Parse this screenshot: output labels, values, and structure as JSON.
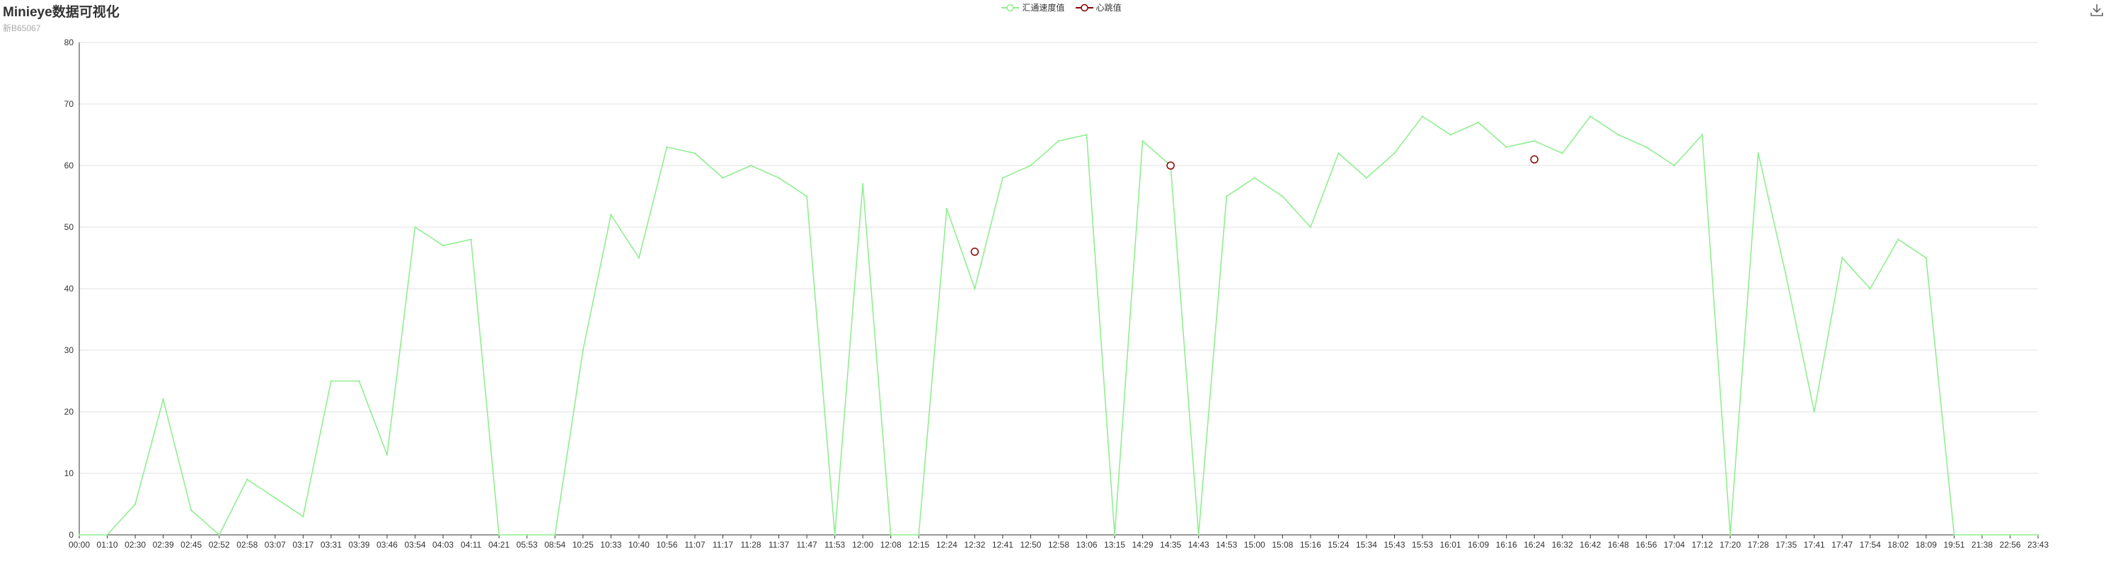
{
  "header": {
    "title": "Minieye数据可视化",
    "subtitle": "新B65067"
  },
  "toolbox": {
    "download_icon": "download-icon"
  },
  "colors": {
    "speed": "#90ee90",
    "heart": "#8b0000",
    "grid": "#e0e0e0",
    "axis": "#333333"
  },
  "chart_data": {
    "type": "line",
    "title": "Minieye数据可视化",
    "subtitle": "新B65067",
    "ylim": [
      0,
      80
    ],
    "y_ticks": [
      0,
      10,
      20,
      30,
      40,
      50,
      60,
      70,
      80
    ],
    "legend_position": "top-center",
    "grid": true,
    "categories": [
      "00:00",
      "01:10",
      "02:30",
      "02:39",
      "02:45",
      "02:52",
      "02:58",
      "03:07",
      "03:17",
      "03:31",
      "03:39",
      "03:46",
      "03:54",
      "04:03",
      "04:11",
      "04:21",
      "05:53",
      "08:54",
      "10:25",
      "10:33",
      "10:40",
      "10:56",
      "11:07",
      "11:17",
      "11:28",
      "11:37",
      "11:47",
      "11:53",
      "12:00",
      "12:08",
      "12:15",
      "12:24",
      "12:32",
      "12:41",
      "12:50",
      "12:58",
      "13:06",
      "13:15",
      "14:29",
      "14:35",
      "14:43",
      "14:53",
      "15:00",
      "15:08",
      "15:16",
      "15:24",
      "15:34",
      "15:43",
      "15:53",
      "16:01",
      "16:09",
      "16:16",
      "16:24",
      "16:32",
      "16:42",
      "16:48",
      "16:56",
      "17:04",
      "17:12",
      "17:20",
      "17:28",
      "17:35",
      "17:41",
      "17:47",
      "17:54",
      "18:02",
      "18:09",
      "19:51",
      "21:38",
      "22:56",
      "23:43"
    ],
    "series": [
      {
        "name": "汇通速度值",
        "values": [
          0,
          0,
          5,
          22,
          4,
          0,
          9,
          6,
          3,
          25,
          25,
          13,
          50,
          47,
          48,
          0,
          0,
          0,
          30,
          52,
          45,
          63,
          62,
          58,
          60,
          58,
          55,
          0,
          57,
          0,
          0,
          53,
          40,
          58,
          60,
          64,
          65,
          0,
          64,
          60,
          0,
          55,
          58,
          55,
          50,
          62,
          58,
          62,
          68,
          65,
          67,
          63,
          64,
          62,
          68,
          65,
          63,
          60,
          65,
          0,
          62,
          42,
          20,
          45,
          40,
          48,
          45,
          0,
          0,
          0,
          0
        ]
      },
      {
        "name": "心跳值",
        "values": [
          null,
          null,
          null,
          null,
          null,
          null,
          null,
          null,
          null,
          null,
          null,
          null,
          null,
          null,
          null,
          null,
          null,
          null,
          null,
          null,
          null,
          null,
          null,
          null,
          null,
          null,
          null,
          null,
          null,
          null,
          null,
          null,
          46,
          null,
          null,
          null,
          null,
          null,
          null,
          60,
          null,
          null,
          null,
          null,
          null,
          null,
          null,
          null,
          null,
          null,
          null,
          null,
          61,
          null,
          null,
          null,
          null,
          null,
          null,
          null,
          null,
          null,
          null,
          null,
          null,
          null,
          null,
          null,
          null,
          null,
          null
        ]
      }
    ]
  }
}
